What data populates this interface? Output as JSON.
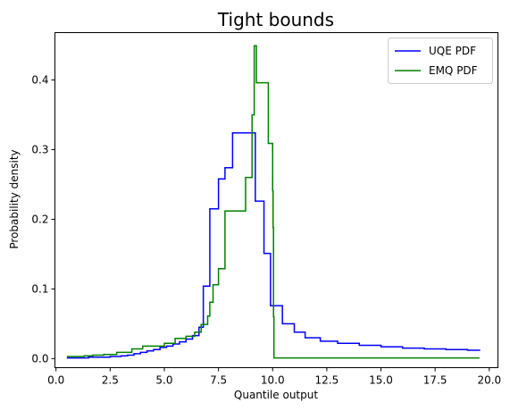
{
  "chart_data": {
    "type": "line",
    "title": "Tight bounds",
    "xlabel": "Quantile output",
    "ylabel": "Probability density",
    "xlim": [
      -0.05,
      20.4
    ],
    "ylim": [
      -0.013,
      0.468
    ],
    "xticks": [
      0.0,
      2.5,
      5.0,
      7.5,
      10.0,
      12.5,
      15.0,
      17.5,
      20.0
    ],
    "xtick_labels": [
      "0.0",
      "2.5",
      "5.0",
      "7.5",
      "10.0",
      "12.5",
      "15.0",
      "17.5",
      "20.0"
    ],
    "yticks": [
      0.0,
      0.1,
      0.2,
      0.3,
      0.4
    ],
    "ytick_labels": [
      "0.0",
      "0.1",
      "0.2",
      "0.3",
      "0.4"
    ],
    "grid": false,
    "legend_position": "top-right",
    "series": [
      {
        "name": "UQE PDF",
        "color": "#0000ff",
        "step": "post",
        "x": [
          0.5,
          1.5,
          2.5,
          3.0,
          3.3,
          3.6,
          3.9,
          4.2,
          4.5,
          4.8,
          5.1,
          5.4,
          5.7,
          6.0,
          6.3,
          6.6,
          6.8,
          7.1,
          7.5,
          7.8,
          8.15,
          9.2,
          9.6,
          9.9,
          10.45,
          11.0,
          11.5,
          12.2,
          13.0,
          14.0,
          15.0,
          16.0,
          17.0,
          18.0,
          19.0,
          19.55
        ],
        "y": [
          0.001,
          0.002,
          0.003,
          0.004,
          0.005,
          0.007,
          0.009,
          0.011,
          0.013,
          0.016,
          0.018,
          0.021,
          0.024,
          0.028,
          0.033,
          0.045,
          0.104,
          0.215,
          0.258,
          0.274,
          0.324,
          0.226,
          0.151,
          0.076,
          0.05,
          0.038,
          0.03,
          0.025,
          0.022,
          0.019,
          0.017,
          0.015,
          0.014,
          0.013,
          0.012,
          0.011
        ]
      },
      {
        "name": "EMQ PDF",
        "color": "#008000",
        "step": "post",
        "x": [
          0.5,
          1.3,
          1.7,
          2.2,
          2.8,
          3.5,
          4.0,
          5.0,
          5.5,
          6.0,
          6.4,
          6.7,
          7.0,
          7.1,
          7.25,
          7.5,
          7.8,
          8.75,
          9.05,
          9.15,
          9.25,
          9.3,
          9.8,
          10.0,
          10.02,
          10.04,
          10.06,
          19.55
        ],
        "y": [
          0.003,
          0.004,
          0.005,
          0.006,
          0.009,
          0.014,
          0.018,
          0.022,
          0.029,
          0.032,
          0.038,
          0.049,
          0.061,
          0.081,
          0.106,
          0.129,
          0.212,
          0.26,
          0.35,
          0.449,
          0.396,
          0.396,
          0.309,
          0.241,
          0.188,
          0.06,
          0.001,
          0.001
        ]
      }
    ]
  }
}
